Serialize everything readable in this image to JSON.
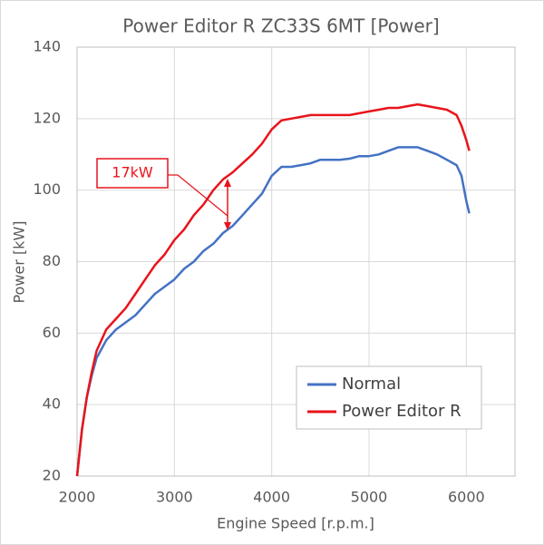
{
  "chart_data": {
    "type": "line",
    "title": "Power Editor R ZC33S 6MT [Power]",
    "x_label": "Engine Speed [r.p.m.]",
    "y_label": "Power [kW]",
    "annotation": "17kW",
    "x": [
      2000,
      2050,
      2100,
      2150,
      2200,
      2300,
      2400,
      2500,
      2600,
      2700,
      2800,
      2900,
      3000,
      3100,
      3200,
      3300,
      3400,
      3500,
      3600,
      3700,
      3800,
      3900,
      4000,
      4100,
      4200,
      4300,
      4400,
      4500,
      4600,
      4700,
      4800,
      4900,
      5000,
      5100,
      5200,
      5300,
      5400,
      5500,
      5600,
      5700,
      5800,
      5900,
      5950,
      6000,
      6030
    ],
    "series": [
      {
        "name": "Normal",
        "color": "#4472c4",
        "values": [
          20,
          33,
          42,
          48,
          53,
          58,
          61,
          63,
          65,
          68,
          71,
          73,
          75,
          78,
          80,
          83,
          85,
          88,
          90,
          93,
          96,
          99,
          104,
          106.5,
          106.5,
          107,
          107.5,
          108.5,
          108.5,
          108.5,
          108.8,
          109.5,
          109.5,
          110,
          111,
          112,
          112,
          112,
          111,
          110,
          108.5,
          107,
          104,
          97,
          93.5
        ]
      },
      {
        "name": "Power Editor R",
        "color": "#e8141b",
        "values": [
          20,
          33,
          42,
          49,
          55,
          61,
          64,
          67,
          71,
          75,
          79,
          82,
          86,
          89,
          93,
          96,
          100,
          103,
          105,
          107.5,
          110,
          113,
          117,
          119.5,
          120,
          120.5,
          121,
          121,
          121,
          121,
          121,
          121.5,
          122,
          122.5,
          123,
          123,
          123.5,
          124,
          123.5,
          123,
          122.5,
          121,
          118,
          114,
          111
        ]
      }
    ],
    "xlim": [
      2000,
      6500
    ],
    "xticks": [
      2000,
      3000,
      4000,
      5000,
      6000
    ],
    "ylim": [
      20,
      140
    ],
    "yticks": [
      20,
      40,
      60,
      80,
      100,
      120,
      140
    ],
    "grid": true,
    "legend": "lower right"
  }
}
